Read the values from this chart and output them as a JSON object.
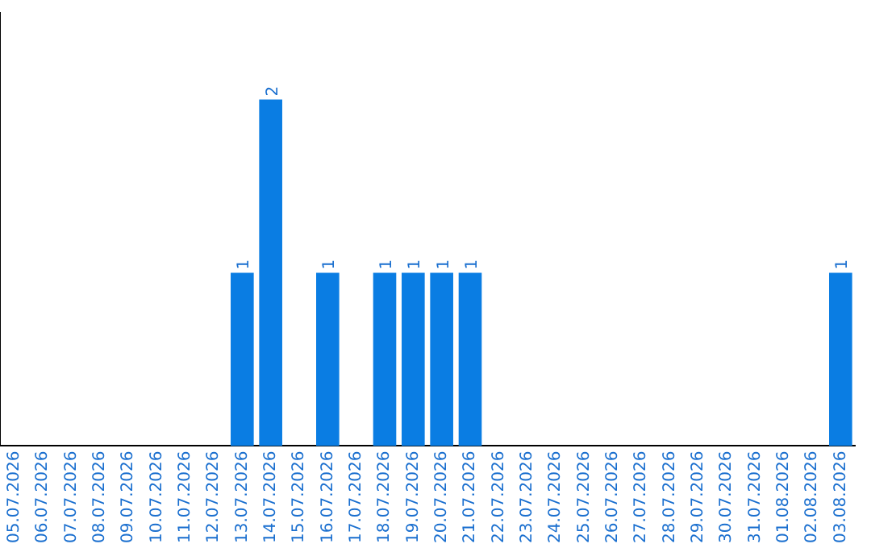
{
  "chart_data": {
    "type": "bar",
    "categories": [
      "05.07.2026",
      "06.07.2026",
      "07.07.2026",
      "08.07.2026",
      "09.07.2026",
      "10.07.2026",
      "11.07.2026",
      "12.07.2026",
      "13.07.2026",
      "14.07.2026",
      "15.07.2026",
      "16.07.2026",
      "17.07.2026",
      "18.07.2026",
      "19.07.2026",
      "20.07.2026",
      "21.07.2026",
      "22.07.2026",
      "23.07.2026",
      "24.07.2026",
      "25.07.2026",
      "26.07.2026",
      "27.07.2026",
      "28.07.2026",
      "29.07.2026",
      "30.07.2026",
      "31.07.2026",
      "01.08.2026",
      "02.08.2026",
      "03.08.2026"
    ],
    "values": [
      0,
      0,
      0,
      0,
      0,
      0,
      0,
      0,
      1,
      2,
      0,
      1,
      0,
      1,
      1,
      1,
      1,
      0,
      0,
      0,
      0,
      0,
      0,
      0,
      0,
      0,
      0,
      0,
      0,
      1
    ],
    "value_labels": [
      null,
      null,
      null,
      null,
      null,
      null,
      null,
      null,
      "1",
      "2",
      null,
      "1",
      null,
      "1",
      "1",
      "1",
      "1",
      null,
      null,
      null,
      null,
      null,
      null,
      null,
      null,
      null,
      null,
      null,
      null,
      "1"
    ],
    "color": "#0a7de3",
    "tick_labels": "x",
    "grid": false,
    "legend": false
  }
}
